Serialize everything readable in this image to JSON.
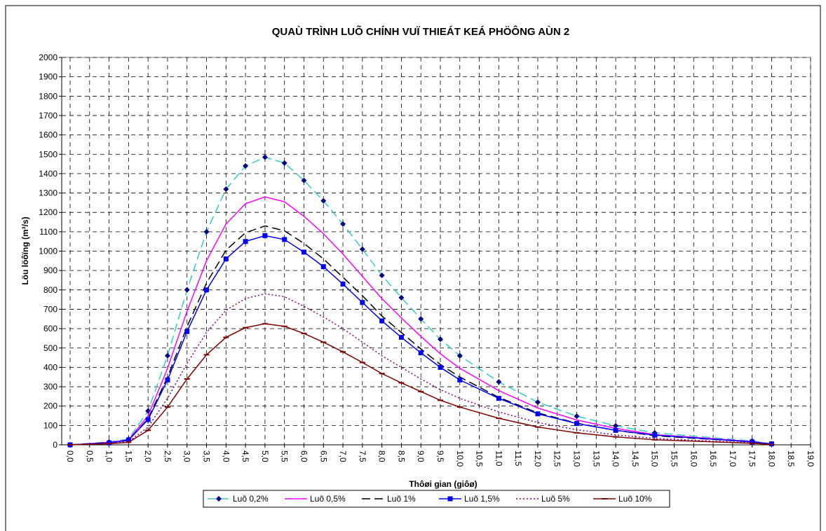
{
  "chart_data": {
    "type": "line",
    "title": "QUAÙ TRÌNH LUÕ CHÍNH VUÏ THIEÁT KEÁ PHÖÔNG AÙN 2",
    "xlabel": "Thôøi gian (giôø)",
    "ylabel": "Löu löôïng (m³/s)",
    "x": [
      0,
      1,
      1.5,
      2,
      2.5,
      3,
      3.5,
      4,
      4.5,
      5,
      5.5,
      6,
      6.5,
      7,
      7.5,
      8,
      8.5,
      9,
      9.5,
      10,
      11,
      12,
      13,
      14,
      15,
      17.5,
      18
    ],
    "series": [
      {
        "name": "Luõ 0,2%",
        "color": "#33cccc",
        "dash": "12 6",
        "marker": "diamond",
        "marker_color": "#000080",
        "values": [
          0,
          15,
          30,
          175,
          460,
          800,
          1100,
          1320,
          1440,
          1485,
          1455,
          1365,
          1260,
          1140,
          1010,
          875,
          760,
          650,
          545,
          460,
          325,
          220,
          148,
          98,
          62,
          20,
          5
        ]
      },
      {
        "name": "Luõ 0,5%",
        "color": "#ff00ff",
        "dash": "none",
        "marker": "none",
        "values": [
          0,
          13,
          26,
          150,
          395,
          690,
          950,
          1140,
          1245,
          1280,
          1255,
          1180,
          1090,
          985,
          870,
          755,
          655,
          560,
          470,
          395,
          280,
          190,
          128,
          85,
          53,
          17,
          4
        ]
      },
      {
        "name": "Luõ 1%",
        "color": "#000000",
        "dash": "12 6",
        "marker": "none",
        "values": [
          0,
          11,
          23,
          135,
          350,
          610,
          835,
          1005,
          1095,
          1130,
          1105,
          1040,
          960,
          865,
          770,
          665,
          580,
          495,
          415,
          350,
          245,
          165,
          112,
          75,
          47,
          15,
          4
        ]
      },
      {
        "name": "Luõ 1,5%",
        "color": "#0000ff",
        "dash": "none",
        "marker": "square",
        "marker_color": "#0000ff",
        "values": [
          0,
          10,
          25,
          130,
          335,
          585,
          800,
          960,
          1050,
          1080,
          1060,
          995,
          920,
          830,
          735,
          640,
          555,
          475,
          400,
          335,
          240,
          160,
          110,
          75,
          50,
          15,
          5
        ]
      },
      {
        "name": "Luõ 5%",
        "color": "#800080",
        "dash": "2 3",
        "marker": "none",
        "values": [
          0,
          8,
          16,
          92,
          240,
          420,
          580,
          695,
          755,
          780,
          765,
          715,
          660,
          600,
          530,
          460,
          400,
          340,
          285,
          240,
          170,
          115,
          78,
          51,
          33,
          10,
          3
        ]
      },
      {
        "name": "Luõ 10%",
        "color": "#800000",
        "dash": "none",
        "marker": "dash",
        "marker_color": "#800000",
        "values": [
          0,
          6,
          13,
          75,
          195,
          340,
          465,
          555,
          605,
          625,
          612,
          575,
          530,
          480,
          425,
          368,
          320,
          275,
          230,
          195,
          137,
          92,
          62,
          41,
          26,
          8,
          2
        ]
      }
    ],
    "xlim": [
      0,
      19
    ],
    "xticks": [
      {
        "value": 0,
        "label": "0,0"
      },
      {
        "value": 0.5,
        "label": "0,5"
      },
      {
        "value": 1,
        "label": "1,0"
      },
      {
        "value": 1.5,
        "label": "1,5"
      },
      {
        "value": 2,
        "label": "2,0"
      },
      {
        "value": 2.5,
        "label": "2,5"
      },
      {
        "value": 3,
        "label": "3,0"
      },
      {
        "value": 3.5,
        "label": "3,5"
      },
      {
        "value": 4,
        "label": "4,0"
      },
      {
        "value": 4.5,
        "label": "4,5"
      },
      {
        "value": 5,
        "label": "5,0"
      },
      {
        "value": 5.5,
        "label": "5,5"
      },
      {
        "value": 6,
        "label": "6,0"
      },
      {
        "value": 6.5,
        "label": "6,5"
      },
      {
        "value": 7,
        "label": "7,0"
      },
      {
        "value": 7.5,
        "label": "7,5"
      },
      {
        "value": 8,
        "label": "8,0"
      },
      {
        "value": 8.5,
        "label": "8,5"
      },
      {
        "value": 9,
        "label": "9,0"
      },
      {
        "value": 9.5,
        "label": "9,5"
      },
      {
        "value": 10,
        "label": "10,0"
      },
      {
        "value": 10.5,
        "label": "10,5"
      },
      {
        "value": 11,
        "label": "11,0"
      },
      {
        "value": 11.5,
        "label": "11,5"
      },
      {
        "value": 12,
        "label": "12,0"
      },
      {
        "value": 12.5,
        "label": "12,5"
      },
      {
        "value": 13,
        "label": "13,0"
      },
      {
        "value": 13.5,
        "label": "13,5"
      },
      {
        "value": 14,
        "label": "14,0"
      },
      {
        "value": 14.5,
        "label": "14,5"
      },
      {
        "value": 15,
        "label": "15,0"
      },
      {
        "value": 15.5,
        "label": "15,5"
      },
      {
        "value": 16,
        "label": "16,0"
      },
      {
        "value": 16.5,
        "label": "16,5"
      },
      {
        "value": 17,
        "label": "17,0"
      },
      {
        "value": 17.5,
        "label": "17,5"
      },
      {
        "value": 18,
        "label": "18,0"
      },
      {
        "value": 18.5,
        "label": "18,5"
      },
      {
        "value": 19,
        "label": "19,0"
      }
    ],
    "ylim": [
      0,
      2000
    ],
    "yticks": [
      0,
      100,
      200,
      300,
      400,
      500,
      600,
      700,
      800,
      900,
      1000,
      1100,
      1200,
      1300,
      1400,
      1500,
      1600,
      1700,
      1800,
      1900,
      2000
    ],
    "grid": true,
    "legend": "bottom"
  }
}
